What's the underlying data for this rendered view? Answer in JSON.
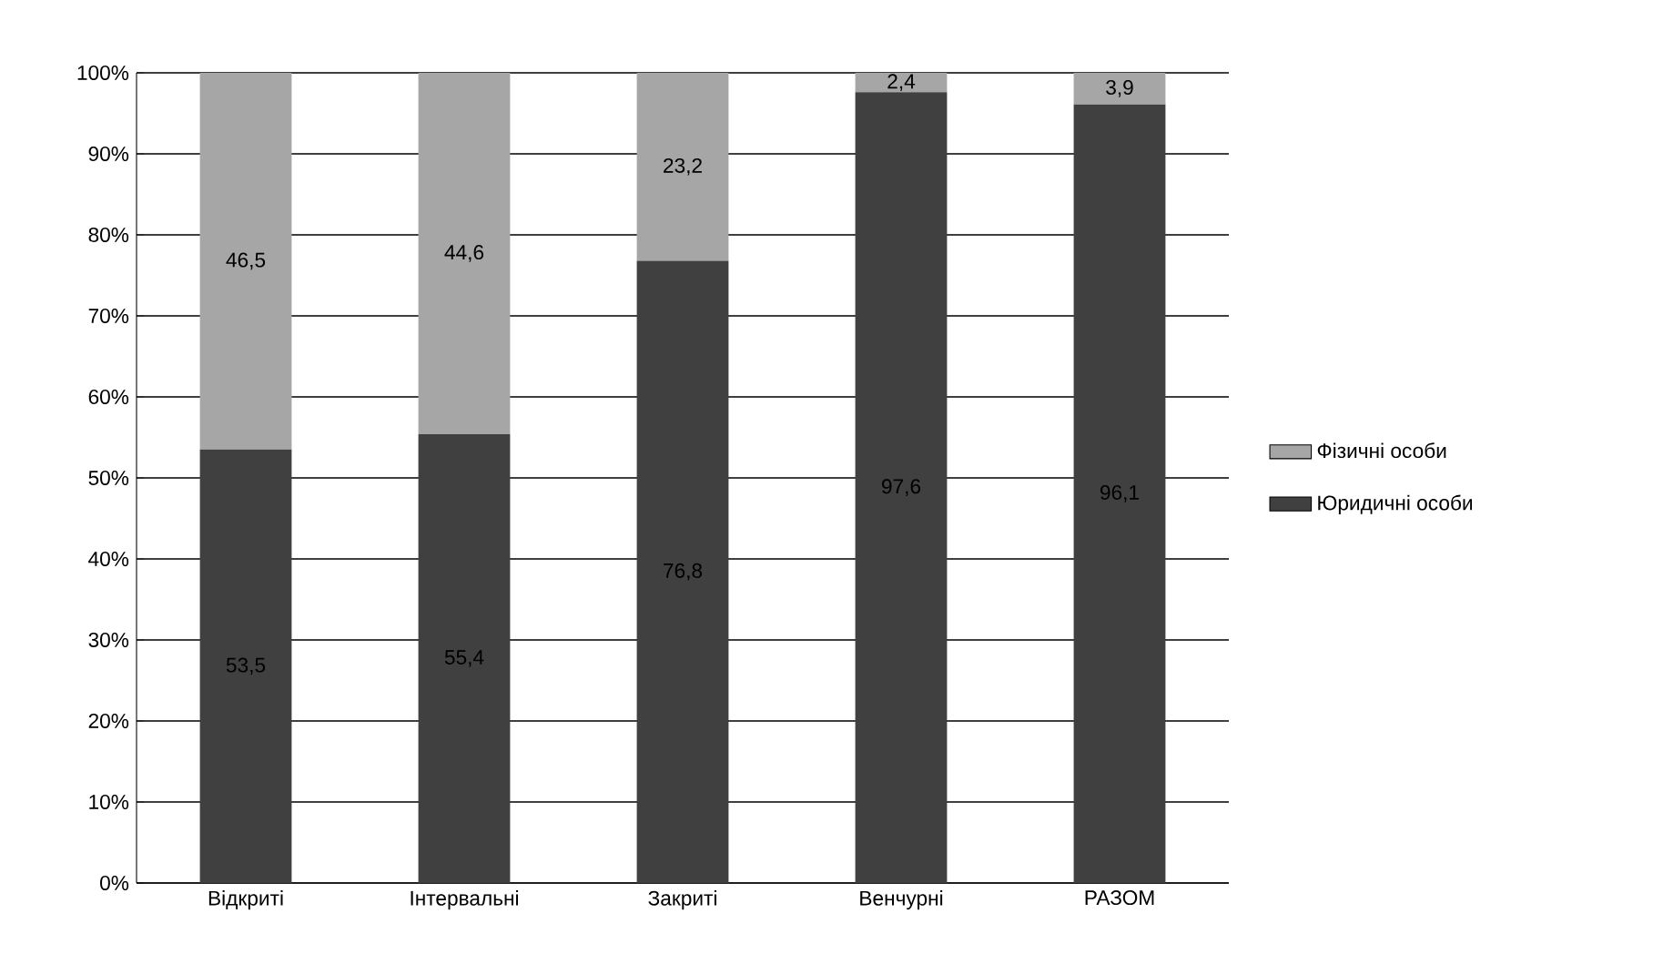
{
  "chart_data": {
    "type": "bar",
    "stacked": true,
    "categories": [
      "Відкриті",
      "Інтервальні",
      "Закриті",
      "Венчурні",
      "РАЗОМ"
    ],
    "series": [
      {
        "name": "Юридичні особи",
        "color": "#404040",
        "values": [
          53.5,
          55.4,
          76.8,
          97.6,
          96.1
        ],
        "value_labels": [
          "53,5",
          "55,4",
          "76,8",
          "97,6",
          "96,1"
        ]
      },
      {
        "name": "Фізичні особи",
        "color": "#a6a6a6",
        "values": [
          46.5,
          44.6,
          23.2,
          2.4,
          3.9
        ],
        "value_labels": [
          "46,5",
          "44,6",
          "23,2",
          "2,4",
          "3,9"
        ]
      }
    ],
    "ylim": [
      0,
      100
    ],
    "yticks": [
      {
        "value": 0,
        "label": "0%"
      },
      {
        "value": 10,
        "label": "10%"
      },
      {
        "value": 20,
        "label": "20%"
      },
      {
        "value": 30,
        "label": "30%"
      },
      {
        "value": 40,
        "label": "40%"
      },
      {
        "value": 50,
        "label": "50%"
      },
      {
        "value": 60,
        "label": "60%"
      },
      {
        "value": 70,
        "label": "70%"
      },
      {
        "value": 80,
        "label": "80%"
      },
      {
        "value": 90,
        "label": "90%"
      },
      {
        "value": 100,
        "label": "100%"
      }
    ],
    "grid": "y",
    "legend": "right"
  }
}
